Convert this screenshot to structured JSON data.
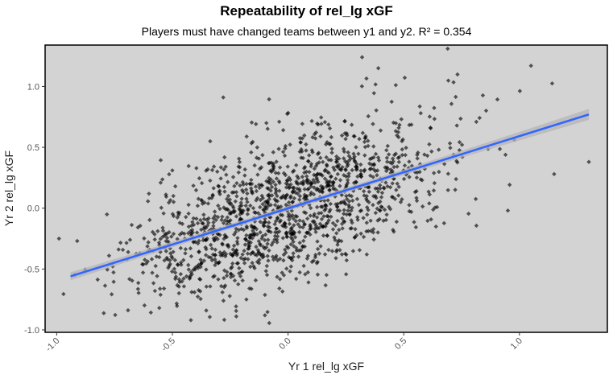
{
  "chart_data": {
    "type": "scatter",
    "title": "Repeatability of rel_lg xGF",
    "subtitle": "Players must have changed teams between y1 and y2. R² = 0.354",
    "xlabel": "Yr 1 rel_lg xGF",
    "ylabel": "Yr 2 rel_lg xGF",
    "xlim": [
      -1.05,
      1.38
    ],
    "ylim": [
      -1.02,
      1.34
    ],
    "x_ticks": [
      -1.0,
      -0.5,
      0.0,
      0.5,
      1.0
    ],
    "x_tick_labels": [
      "-1.0",
      "-0.5",
      "0.0",
      "0.5",
      "1.0"
    ],
    "y_ticks": [
      -1.0,
      -0.5,
      0.0,
      0.5,
      1.0
    ],
    "y_tick_labels": [
      "-1.0",
      "-0.5",
      "0.0",
      "0.5",
      "1.0"
    ],
    "r_squared": 0.354,
    "regression_line": {
      "x": [
        -0.94,
        1.3
      ],
      "y": [
        -0.56,
        0.77
      ],
      "color": "#3366ff"
    },
    "n_points": 1500,
    "point_cloud": {
      "x_mean": 0.0,
      "x_sd": 0.33,
      "y_mean": 0.0,
      "y_sd": 0.36,
      "correlation": 0.595
    },
    "outliers": [
      {
        "x": 0.69,
        "y": 1.31
      },
      {
        "x": 0.32,
        "y": 1.24
      },
      {
        "x": 1.05,
        "y": 1.17
      },
      {
        "x": 0.39,
        "y": 1.15
      },
      {
        "x": -0.28,
        "y": 0.91
      },
      {
        "x": -0.99,
        "y": -0.25
      },
      {
        "x": -0.42,
        "y": -0.92
      },
      {
        "x": -0.1,
        "y": -0.88
      },
      {
        "x": 1.3,
        "y": 0.38
      },
      {
        "x": 1.15,
        "y": 0.28
      },
      {
        "x": 0.95,
        "y": -0.02
      },
      {
        "x": -0.18,
        "y": -0.75
      }
    ],
    "colors": {
      "panel": "#d3d3d3",
      "point": "#000000",
      "band": "#b5b5b5",
      "line": "#3366ff"
    }
  }
}
